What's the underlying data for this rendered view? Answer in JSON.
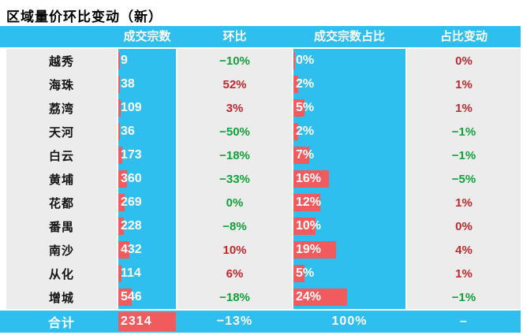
{
  "title": "区域量价环比变动（新）",
  "colors": {
    "header_bg": "#2EBFEF",
    "bar_red": "#F15B5E",
    "up_text": "#C2282D",
    "down_text": "#12A13B",
    "row_bg": "#ECECEC"
  },
  "chart_data": {
    "type": "table",
    "title": "区域量价环比变动（新）",
    "columns": [
      "",
      "成交宗数",
      "环比",
      "成交宗数占比",
      "占比变动"
    ],
    "bar_scales": {
      "count_max": 2314,
      "share_max": 50
    },
    "rows": [
      {
        "name": "越秀",
        "count": 9,
        "count_label": "9",
        "mom": "−10%",
        "mom_dir": "down",
        "share": 0,
        "share_label": "0%",
        "change": "0%",
        "change_dir": "up"
      },
      {
        "name": "海珠",
        "count": 38,
        "count_label": "38",
        "mom": "52%",
        "mom_dir": "up",
        "share": 2,
        "share_label": "2%",
        "change": "1%",
        "change_dir": "up"
      },
      {
        "name": "荔湾",
        "count": 109,
        "count_label": "109",
        "mom": "3%",
        "mom_dir": "up",
        "share": 5,
        "share_label": "5%",
        "change": "1%",
        "change_dir": "up"
      },
      {
        "name": "天河",
        "count": 36,
        "count_label": "36",
        "mom": "−50%",
        "mom_dir": "down",
        "share": 2,
        "share_label": "2%",
        "change": "−1%",
        "change_dir": "down"
      },
      {
        "name": "白云",
        "count": 173,
        "count_label": "173",
        "mom": "−18%",
        "mom_dir": "down",
        "share": 7,
        "share_label": "7%",
        "change": "−1%",
        "change_dir": "down"
      },
      {
        "name": "黄埔",
        "count": 360,
        "count_label": "360",
        "mom": "−33%",
        "mom_dir": "down",
        "share": 16,
        "share_label": "16%",
        "change": "−5%",
        "change_dir": "down"
      },
      {
        "name": "花都",
        "count": 269,
        "count_label": "269",
        "mom": "0%",
        "mom_dir": "down",
        "share": 12,
        "share_label": "12%",
        "change": "1%",
        "change_dir": "up"
      },
      {
        "name": "番禺",
        "count": 228,
        "count_label": "228",
        "mom": "−8%",
        "mom_dir": "down",
        "share": 10,
        "share_label": "10%",
        "change": "0%",
        "change_dir": "up"
      },
      {
        "name": "南沙",
        "count": 432,
        "count_label": "432",
        "mom": "10%",
        "mom_dir": "up",
        "share": 19,
        "share_label": "19%",
        "change": "4%",
        "change_dir": "up"
      },
      {
        "name": "从化",
        "count": 114,
        "count_label": "114",
        "mom": "6%",
        "mom_dir": "up",
        "share": 5,
        "share_label": "5%",
        "change": "1%",
        "change_dir": "up"
      },
      {
        "name": "增城",
        "count": 546,
        "count_label": "546",
        "mom": "−18%",
        "mom_dir": "down",
        "share": 24,
        "share_label": "24%",
        "change": "−1%",
        "change_dir": "down"
      }
    ],
    "total": {
      "name": "合计",
      "count": 2314,
      "count_label": "2314",
      "mom": "−13%",
      "share_label": "100%",
      "change": "–"
    }
  }
}
